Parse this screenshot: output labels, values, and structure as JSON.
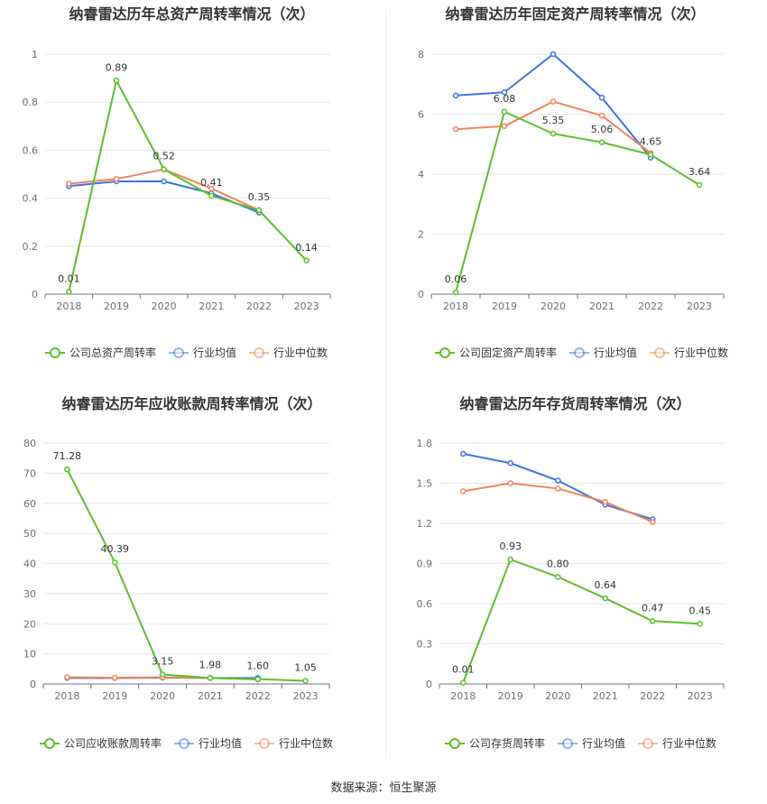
{
  "colors": {
    "company": "#5ac02c",
    "avg": "#3d74db",
    "median": "#ef845c"
  },
  "source_label": "数据来源：恒生聚源",
  "chart_data": [
    {
      "type": "line",
      "title": "纳睿雷达历年总资产周转率情况（次）",
      "categories": [
        "2018",
        "2019",
        "2020",
        "2021",
        "2022",
        "2023"
      ],
      "ylim": [
        0,
        1
      ],
      "yticks": [
        0,
        0.2,
        0.4,
        0.6,
        0.8,
        1
      ],
      "ytick_labels": [
        "0",
        "0.2",
        "0.4",
        "0.6",
        "0.8",
        "1"
      ],
      "series": [
        {
          "name": "公司总资产周转率",
          "color": "#5ac02c",
          "values": [
            0.01,
            0.89,
            0.52,
            0.41,
            0.35,
            0.14
          ],
          "labels": [
            "0.01",
            "0.89",
            "0.52",
            "0.41",
            "0.35",
            "0.14"
          ]
        },
        {
          "name": "行业均值",
          "color": "#3d74db",
          "values": [
            0.45,
            0.47,
            0.47,
            0.42,
            0.34,
            null
          ]
        },
        {
          "name": "行业中位数",
          "color": "#ef845c",
          "values": [
            0.46,
            0.48,
            0.52,
            0.44,
            0.35,
            null
          ]
        }
      ]
    },
    {
      "type": "line",
      "title": "纳睿雷达历年固定资产周转率情况（次）",
      "categories": [
        "2018",
        "2019",
        "2020",
        "2021",
        "2022",
        "2023"
      ],
      "ylim": [
        0,
        8
      ],
      "yticks": [
        0,
        2,
        4,
        6,
        8
      ],
      "ytick_labels": [
        "0",
        "2",
        "4",
        "6",
        "8"
      ],
      "series": [
        {
          "name": "公司固定资产周转率",
          "color": "#5ac02c",
          "values": [
            0.06,
            6.08,
            5.35,
            5.06,
            4.65,
            3.64
          ],
          "labels": [
            "0.06",
            "6.08",
            "5.35",
            "5.06",
            "4.65",
            "3.64"
          ]
        },
        {
          "name": "行业均值",
          "color": "#3d74db",
          "values": [
            6.62,
            6.73,
            8.0,
            6.55,
            4.55,
            null
          ]
        },
        {
          "name": "行业中位数",
          "color": "#ef845c",
          "values": [
            5.5,
            5.6,
            6.42,
            5.95,
            4.7,
            null
          ]
        }
      ]
    },
    {
      "type": "line",
      "title": "纳睿雷达历年应收账款周转率情况（次）",
      "categories": [
        "2018",
        "2019",
        "2020",
        "2021",
        "2022",
        "2023"
      ],
      "ylim": [
        0,
        80
      ],
      "yticks": [
        0,
        10,
        20,
        30,
        40,
        50,
        60,
        70,
        80
      ],
      "ytick_labels": [
        "0",
        "10",
        "20",
        "30",
        "40",
        "50",
        "60",
        "70",
        "80"
      ],
      "series": [
        {
          "name": "公司应收账款周转率",
          "color": "#5ac02c",
          "values": [
            71.28,
            40.39,
            3.15,
            1.98,
            1.6,
            1.05
          ],
          "labels": [
            "71.28",
            "40.39",
            "3.15",
            "1.98",
            "1.60",
            "1.05"
          ]
        },
        {
          "name": "行业均值",
          "color": "#3d74db",
          "values": [
            2.0,
            2.0,
            2.1,
            2.0,
            2.0,
            null
          ]
        },
        {
          "name": "行业中位数",
          "color": "#ef845c",
          "values": [
            2.2,
            2.1,
            2.2,
            2.0,
            1.5,
            null
          ]
        }
      ]
    },
    {
      "type": "line",
      "title": "纳睿雷达历年存货周转率情况（次）",
      "categories": [
        "2018",
        "2019",
        "2020",
        "2021",
        "2022",
        "2023"
      ],
      "ylim": [
        0,
        1.8
      ],
      "yticks": [
        0,
        0.3,
        0.6,
        0.9,
        1.2,
        1.5,
        1.8
      ],
      "ytick_labels": [
        "0",
        "0.3",
        "0.6",
        "0.9",
        "1.2",
        "1.5",
        "1.8"
      ],
      "series": [
        {
          "name": "公司存货周转率",
          "color": "#5ac02c",
          "values": [
            0.01,
            0.93,
            0.8,
            0.64,
            0.47,
            0.45
          ],
          "labels": [
            "0.01",
            "0.93",
            "0.80",
            "0.64",
            "0.47",
            "0.45"
          ]
        },
        {
          "name": "行业均值",
          "color": "#3d74db",
          "values": [
            1.72,
            1.65,
            1.52,
            1.34,
            1.23,
            null
          ]
        },
        {
          "name": "行业中位数",
          "color": "#ef845c",
          "values": [
            1.44,
            1.5,
            1.46,
            1.36,
            1.21,
            null
          ]
        }
      ]
    }
  ]
}
